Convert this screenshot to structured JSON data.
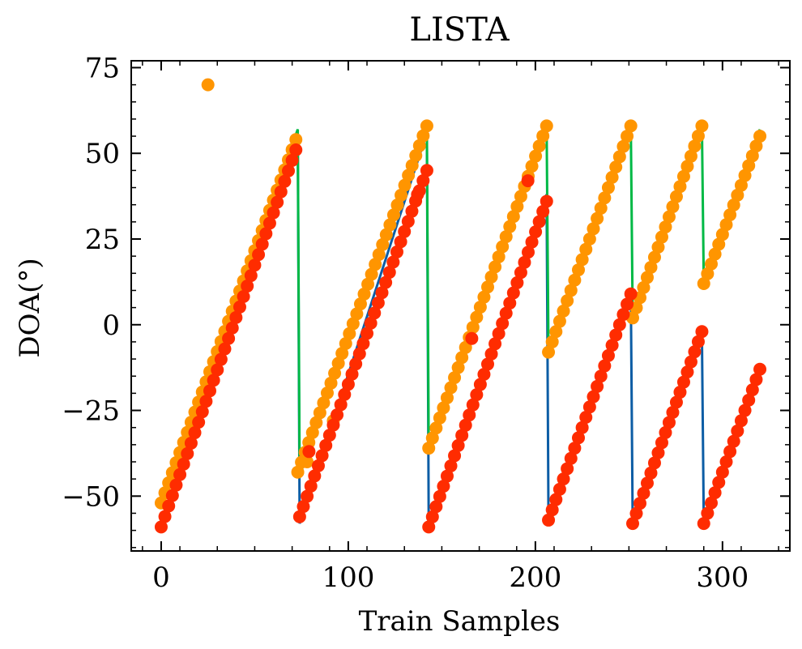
{
  "chart_data": {
    "type": "scatter",
    "title": "LISTA",
    "xlabel": "Train Samples",
    "ylabel": "DOA(°)",
    "xlim": [
      -16,
      336
    ],
    "ylim": [
      -66,
      77
    ],
    "x_ticks": [
      0,
      100,
      200,
      300
    ],
    "x_tick_labels": [
      "0",
      "100",
      "200",
      "300"
    ],
    "y_ticks": [
      -50,
      -25,
      0,
      25,
      50,
      75
    ],
    "y_tick_labels": [
      "−50",
      "−25",
      "0",
      "25",
      "50",
      "75"
    ],
    "grid": false,
    "legend": "none",
    "colors": {
      "line_a": "#0C5DA5",
      "line_b": "#00B945",
      "points_a": "#FF9500",
      "points_b": "#FF2C00"
    },
    "line_series": [
      {
        "color": "#0C5DA5",
        "segments": [
          {
            "x_start": 0,
            "x_end": 73,
            "y_start": -59,
            "y_end": 55
          },
          {
            "x_start": 74,
            "x_end": 142,
            "y_start": -58,
            "y_end": 56
          },
          {
            "x_start": 143,
            "x_end": 206,
            "y_start": -59,
            "y_end": 38
          },
          {
            "x_start": 207,
            "x_end": 251,
            "y_start": -57,
            "y_end": 9
          },
          {
            "x_start": 252,
            "x_end": 289,
            "y_start": -58,
            "y_end": -3
          },
          {
            "x_start": 290,
            "x_end": 320,
            "y_start": -58,
            "y_end": -13
          }
        ]
      },
      {
        "color": "#00B945",
        "segments": [
          {
            "x_start": 0,
            "x_end": 73,
            "y_start": -52,
            "y_end": 57
          },
          {
            "x_start": 74,
            "x_end": 142,
            "y_start": -44,
            "y_end": 58
          },
          {
            "x_start": 143,
            "x_end": 206,
            "y_start": -37,
            "y_end": 58
          },
          {
            "x_start": 207,
            "x_end": 251,
            "y_start": -8,
            "y_end": 58
          },
          {
            "x_start": 252,
            "x_end": 289,
            "y_start": 2,
            "y_end": 58
          },
          {
            "x_start": 290,
            "x_end": 320,
            "y_start": 12,
            "y_end": 57
          }
        ]
      }
    ],
    "point_series": [
      {
        "color": "#FF9500",
        "segments": [
          {
            "x_start": 0,
            "x_end": 72,
            "y_start": -52,
            "y_end": 54
          },
          {
            "x_start": 73,
            "x_end": 142,
            "y_start": -43,
            "y_end": 58
          },
          {
            "x_start": 143,
            "x_end": 206,
            "y_start": -36,
            "y_end": 58
          },
          {
            "x_start": 207,
            "x_end": 251,
            "y_start": -8,
            "y_end": 58
          },
          {
            "x_start": 252,
            "x_end": 289,
            "y_start": 2,
            "y_end": 58
          },
          {
            "x_start": 290,
            "x_end": 320,
            "y_start": 12,
            "y_end": 55
          }
        ],
        "outliers": [
          {
            "x": 25,
            "y": 70
          },
          {
            "x": 78,
            "y": -40
          },
          {
            "x": 92,
            "y": -28
          }
        ]
      },
      {
        "color": "#FF2C00",
        "segments": [
          {
            "x_start": 0,
            "x_end": 72,
            "y_start": -59,
            "y_end": 51
          },
          {
            "x_start": 74,
            "x_end": 142,
            "y_start": -56,
            "y_end": 45
          },
          {
            "x_start": 143,
            "x_end": 206,
            "y_start": -59,
            "y_end": 36
          },
          {
            "x_start": 207,
            "x_end": 251,
            "y_start": -57,
            "y_end": 9
          },
          {
            "x_start": 252,
            "x_end": 289,
            "y_start": -58,
            "y_end": -2
          },
          {
            "x_start": 290,
            "x_end": 320,
            "y_start": -58,
            "y_end": -13
          }
        ],
        "outliers": [
          {
            "x": 166,
            "y": -4
          },
          {
            "x": 196,
            "y": 42
          },
          {
            "x": 79,
            "y": -37
          },
          {
            "x": 137,
            "y": 38
          }
        ]
      }
    ],
    "point_step": 2
  }
}
